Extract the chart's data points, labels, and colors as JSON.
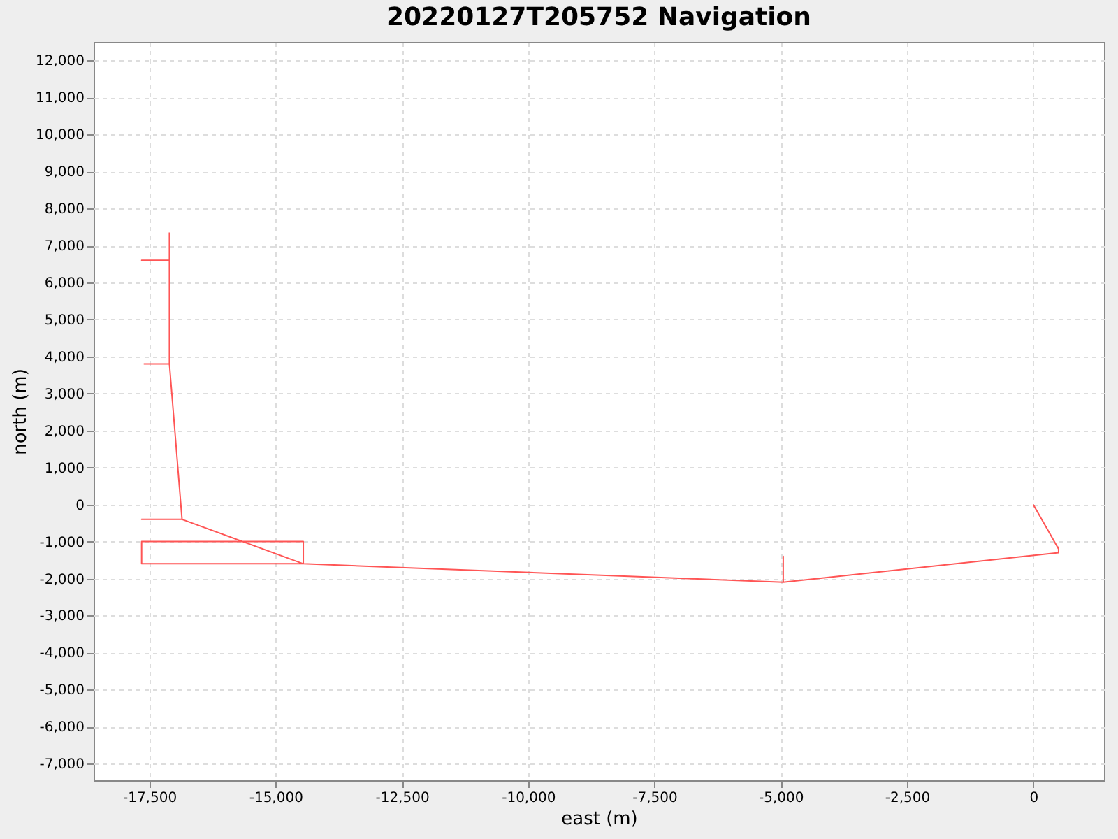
{
  "chart_data": {
    "type": "line",
    "title": "20220127T205752 Navigation",
    "xlabel": "east (m)",
    "ylabel": "north (m)",
    "series": [
      {
        "color": "#ff5555",
        "x": [
          0,
          500,
          500,
          500,
          -4950,
          -4950,
          -4950,
          -14450,
          -17650,
          -17650,
          -14450,
          -14450,
          -16850,
          -17650,
          -16850,
          -17100,
          -17600,
          -17100,
          -17100,
          -17650,
          -17100,
          -17100
        ],
        "values": [
          0,
          -1200,
          -1150,
          -1300,
          -2100,
          -1400,
          -2100,
          -1600,
          -1600,
          -1000,
          -1000,
          -1600,
          -400,
          -400,
          -400,
          3800,
          3800,
          3800,
          6600,
          6600,
          6600,
          7350
        ]
      }
    ],
    "xlim": [
      -18600,
      1400
    ],
    "ylim": [
      -7450,
      12500
    ],
    "xticks": [
      {
        "value": -17500,
        "label": "-17,500"
      },
      {
        "value": -15000,
        "label": "-15,000"
      },
      {
        "value": -12500,
        "label": "-12,500"
      },
      {
        "value": -10000,
        "label": "-10,000"
      },
      {
        "value": -7500,
        "label": "-7,500"
      },
      {
        "value": -5000,
        "label": "-5,000"
      },
      {
        "value": -2500,
        "label": "-2,500"
      },
      0
    ],
    "yticks": [
      {
        "value": -7000,
        "label": "-7,000"
      },
      {
        "value": -6000,
        "label": "-6,000"
      },
      {
        "value": -5000,
        "label": "-5,000"
      },
      {
        "value": -4000,
        "label": "-4,000"
      },
      {
        "value": -3000,
        "label": "-3,000"
      },
      {
        "value": -2000,
        "label": "-2,000"
      },
      {
        "value": -1000,
        "label": "-1,000"
      },
      0,
      {
        "value": 1000,
        "label": "1,000"
      },
      {
        "value": 2000,
        "label": "2,000"
      },
      {
        "value": 3000,
        "label": "3,000"
      },
      {
        "value": 4000,
        "label": "4,000"
      },
      {
        "value": 5000,
        "label": "5,000"
      },
      {
        "value": 6000,
        "label": "6,000"
      },
      {
        "value": 7000,
        "label": "7,000"
      },
      {
        "value": 8000,
        "label": "8,000"
      },
      {
        "value": 9000,
        "label": "9,000"
      },
      {
        "value": 10000,
        "label": "10,000"
      },
      {
        "value": 11000,
        "label": "11,000"
      },
      {
        "value": 12000,
        "label": "12,000"
      }
    ],
    "grid": true,
    "marker": "none",
    "line_style": "solid",
    "legend": false
  }
}
